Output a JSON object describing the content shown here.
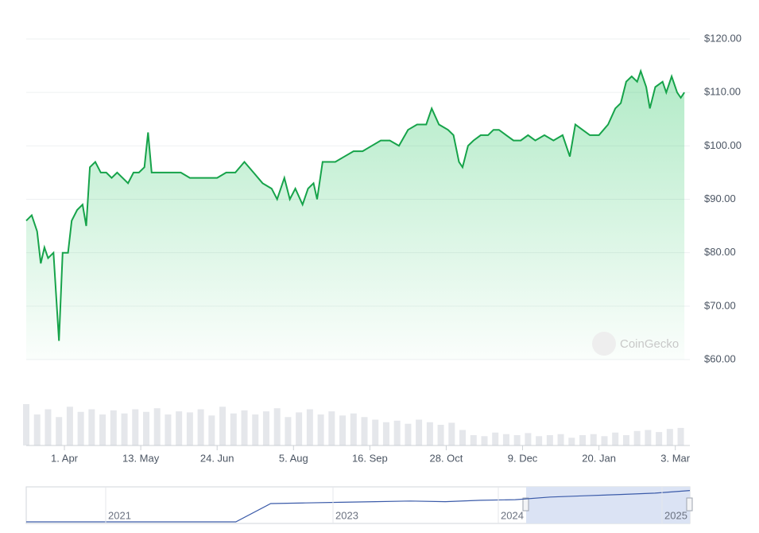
{
  "chart_data": {
    "type": "line",
    "color": "#16a34a",
    "x": [
      0,
      3,
      6,
      8,
      10,
      12,
      15,
      18,
      20,
      23,
      25,
      28,
      31,
      33,
      35,
      38,
      41,
      44,
      47,
      50,
      53,
      56,
      59,
      62,
      65,
      67,
      69,
      72,
      76,
      80,
      85,
      90,
      95,
      100,
      105,
      110,
      115,
      120,
      125,
      130,
      135,
      138,
      142,
      145,
      148,
      152,
      155,
      158,
      160,
      163,
      166,
      170,
      175,
      180,
      185,
      190,
      195,
      200,
      205,
      210,
      215,
      220,
      223,
      227,
      232,
      235,
      238,
      240,
      243,
      246,
      250,
      254,
      257,
      260,
      264,
      268,
      272,
      276,
      280,
      285,
      290,
      295,
      299,
      302,
      306,
      310,
      315,
      320,
      324,
      327,
      330,
      333,
      336,
      338,
      341,
      343,
      346,
      350,
      352,
      355,
      358,
      360,
      362
    ],
    "values": [
      86,
      87,
      84,
      78,
      81,
      79,
      80,
      63.5,
      80,
      80,
      86,
      88,
      89,
      85,
      96,
      97,
      95,
      95,
      94,
      95,
      94,
      93,
      95,
      95,
      96,
      102.5,
      95,
      95,
      95,
      95,
      95,
      94,
      94,
      94,
      94,
      95,
      95,
      97,
      95,
      93,
      92,
      90,
      94,
      90,
      92,
      89,
      92,
      93,
      90,
      97,
      97,
      97,
      98,
      99,
      99,
      100,
      101,
      101,
      100,
      103,
      104,
      104,
      107,
      104,
      103,
      102,
      97,
      96,
      100,
      101,
      102,
      102,
      103,
      103,
      102,
      101,
      101,
      102,
      101,
      102,
      101,
      102,
      98,
      104,
      103,
      102,
      102,
      104,
      107,
      108,
      112,
      113,
      112,
      114,
      111,
      107,
      111,
      112,
      110,
      113,
      110,
      109,
      110
    ],
    "xlim": [
      0,
      365
    ],
    "xticks": [
      {
        "value": 21,
        "label": "1. Apr"
      },
      {
        "value": 63,
        "label": "13. May"
      },
      {
        "value": 105,
        "label": "24. Jun"
      },
      {
        "value": 147,
        "label": "5. Aug"
      },
      {
        "value": 189,
        "label": "16. Sep"
      },
      {
        "value": 231,
        "label": "28. Oct"
      },
      {
        "value": 273,
        "label": "9. Dec"
      },
      {
        "value": 315,
        "label": "20. Jan"
      },
      {
        "value": 357,
        "label": "3. Mar"
      }
    ],
    "ylim": [
      60,
      120
    ],
    "yticks": [
      {
        "value": 120,
        "label": "$120.00"
      },
      {
        "value": 110,
        "label": "$110.00"
      },
      {
        "value": 100,
        "label": "$100.00"
      },
      {
        "value": 90,
        "label": "$90.00"
      },
      {
        "value": 80,
        "label": "$80.00"
      },
      {
        "value": 70,
        "label": "$70.00"
      },
      {
        "value": 60,
        "label": "$60.00"
      }
    ],
    "grid": true,
    "watermark": "CoinGecko",
    "volume": {
      "color": "#e5e7eb",
      "ylim": [
        0,
        100
      ],
      "x": [
        0,
        6,
        12,
        18,
        24,
        30,
        36,
        42,
        48,
        54,
        60,
        66,
        72,
        78,
        84,
        90,
        96,
        102,
        108,
        114,
        120,
        126,
        132,
        138,
        144,
        150,
        156,
        162,
        168,
        174,
        180,
        186,
        192,
        198,
        204,
        210,
        216,
        222,
        228,
        234,
        240,
        246,
        252,
        258,
        264,
        270,
        276,
        282,
        288,
        294,
        300,
        306,
        312,
        318,
        324,
        330,
        336,
        342,
        348,
        354,
        360
      ],
      "values": [
        80,
        60,
        70,
        55,
        75,
        65,
        70,
        60,
        68,
        62,
        70,
        65,
        72,
        60,
        66,
        64,
        70,
        58,
        75,
        62,
        68,
        60,
        66,
        72,
        55,
        64,
        70,
        60,
        66,
        58,
        62,
        55,
        50,
        45,
        48,
        42,
        50,
        45,
        40,
        44,
        30,
        20,
        18,
        25,
        22,
        20,
        24,
        18,
        20,
        22,
        15,
        20,
        22,
        18,
        25,
        20,
        28,
        30,
        26,
        32,
        34
      ]
    },
    "navigator": {
      "color": "#3b5ba9",
      "ylim": [
        0,
        50
      ],
      "values": [
        0,
        0,
        0,
        0,
        0,
        0,
        0,
        28,
        29,
        30,
        31,
        32,
        31,
        33,
        34,
        38,
        40,
        42,
        44,
        48
      ],
      "labels": [
        "2021",
        "2023",
        "2024",
        "2025"
      ]
    }
  }
}
